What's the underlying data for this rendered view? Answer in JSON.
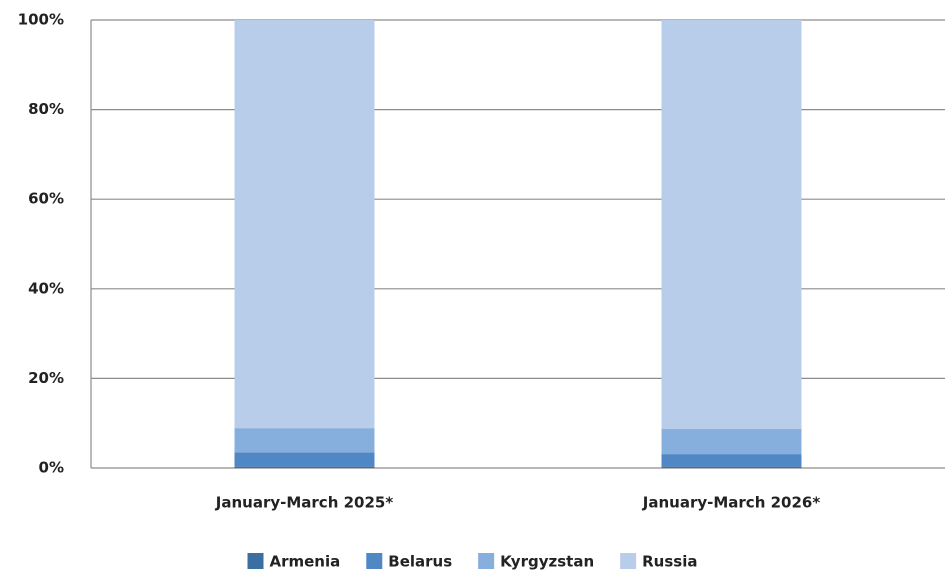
{
  "chart_data": {
    "type": "stacked_bar",
    "categories": [
      "January-March 2025*",
      "January-March 2026*"
    ],
    "series": [
      {
        "name": "Armenia",
        "color": "#3b6fa1",
        "values": [
          0.3,
          0.3
        ]
      },
      {
        "name": "Belarus",
        "color": "#5088c5",
        "values": [
          3.2,
          2.8
        ]
      },
      {
        "name": "Kyrgyzstan",
        "color": "#87afdd",
        "values": [
          5.4,
          5.6
        ]
      },
      {
        "name": "Russia",
        "color": "#b8cde9",
        "values": [
          91.1,
          91.3
        ]
      }
    ],
    "ylim": [
      0,
      100
    ],
    "yticks": [
      {
        "value": 0,
        "label": "0%"
      },
      {
        "value": 20,
        "label": "20%"
      },
      {
        "value": 40,
        "label": "40%"
      },
      {
        "value": 60,
        "label": "60%"
      },
      {
        "value": 80,
        "label": "80%"
      },
      {
        "value": 100,
        "label": "100%"
      }
    ],
    "grid": true,
    "legend": "bottom"
  }
}
